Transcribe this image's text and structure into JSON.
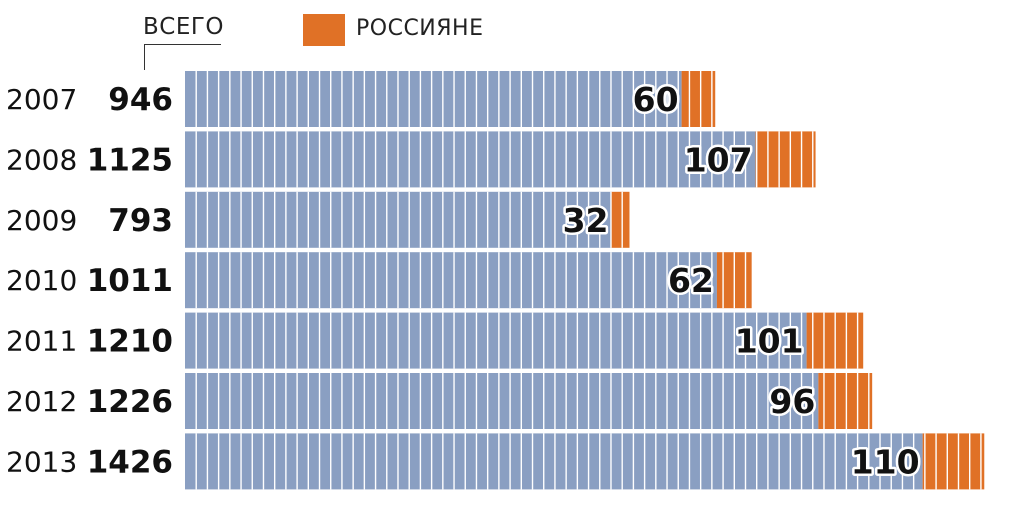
{
  "colors": {
    "total": "#8a9fc2",
    "russians": "#e07126",
    "text": "#111111"
  },
  "legend": {
    "total_label": "ВСЕГО",
    "russians_label": "РОССИЯНЕ"
  },
  "chart_data": {
    "type": "bar",
    "orientation": "horizontal",
    "stacked": true,
    "categories": [
      "2007",
      "2008",
      "2009",
      "2010",
      "2011",
      "2012",
      "2013"
    ],
    "series": [
      {
        "name": "ВСЕГО",
        "values": [
          946,
          1125,
          793,
          1011,
          1210,
          1226,
          1426
        ]
      },
      {
        "name": "РОССИЯНЕ",
        "values": [
          60,
          107,
          32,
          62,
          101,
          96,
          110
        ]
      }
    ],
    "title": "",
    "xlabel": "",
    "ylabel": "",
    "legend_position": "top-left",
    "grid": false
  }
}
